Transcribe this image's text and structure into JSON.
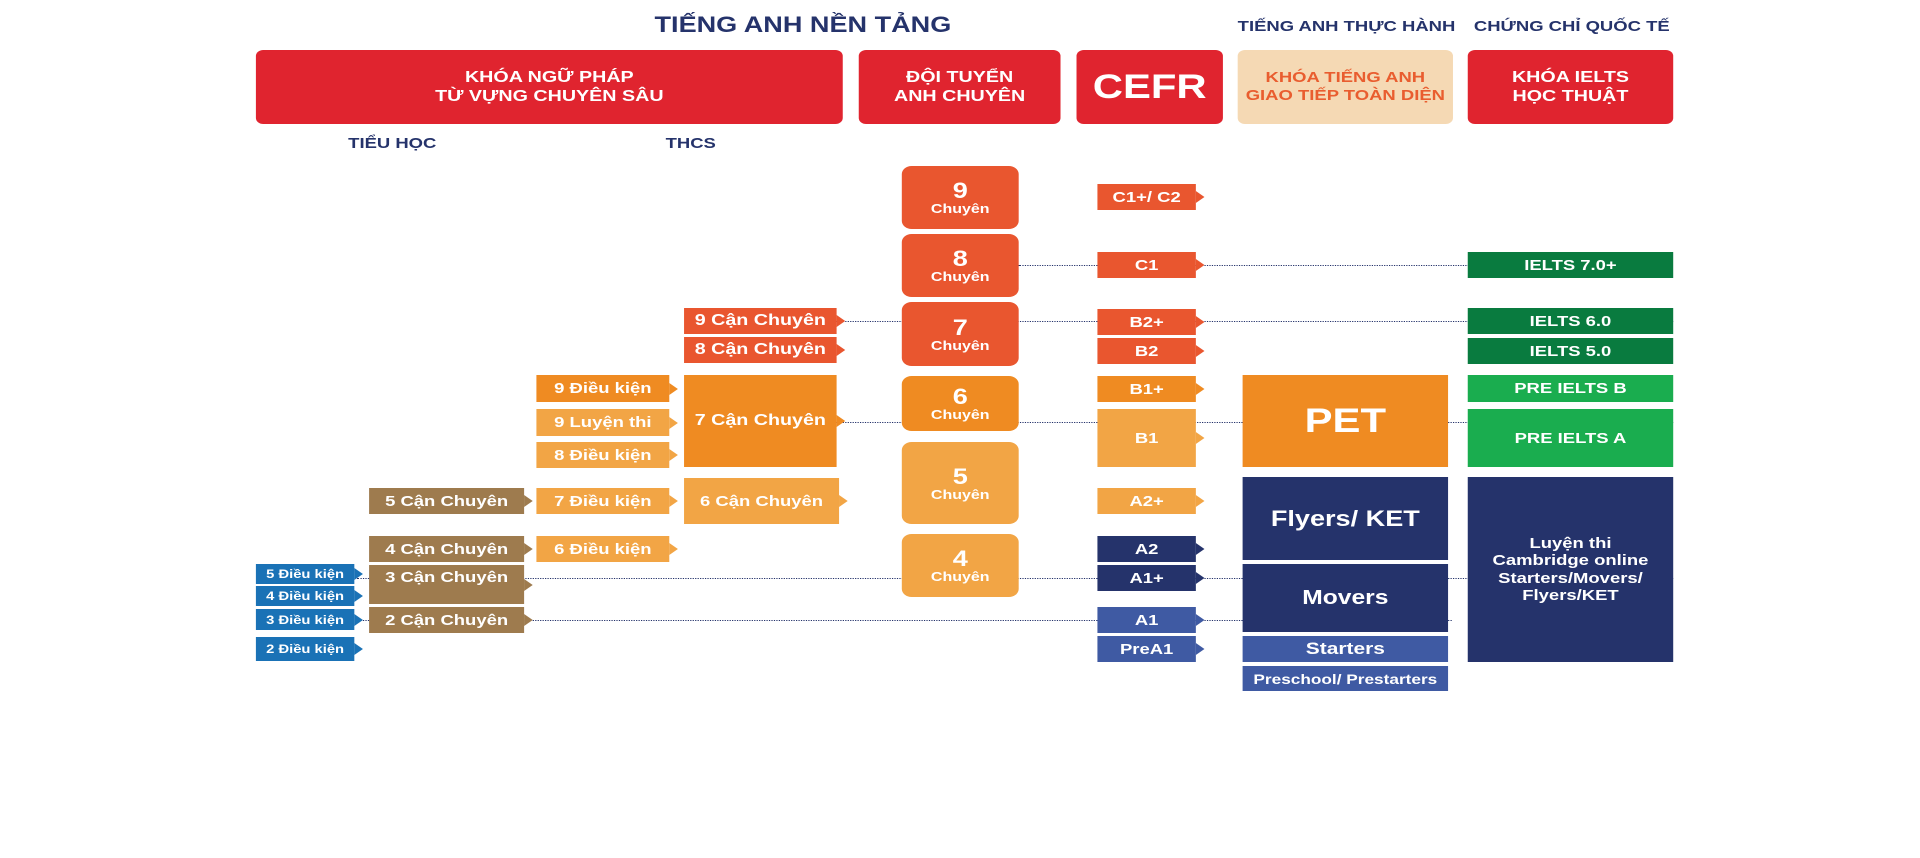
{
  "headers": {
    "foundation": "TIẾNG ANH NỀN TẢNG",
    "practical": "TIẾNG ANH THỰC HÀNH",
    "international": "CHỨNG CHỈ QUỐC TẾ"
  },
  "courses": {
    "grammar": [
      "KHÓA NGỮ PHÁP",
      "TỪ VỰNG CHUYÊN SÂU"
    ],
    "team": [
      "ĐỘI TUYỂN",
      "ANH CHUYÊN"
    ],
    "cefr": "CEFR",
    "communication": [
      "KHÓA TIẾNG ANH",
      "GIAO TIẾP TOÀN DIỆN"
    ],
    "ielts": [
      "KHÓA IELTS",
      "HỌC THUẬT"
    ]
  },
  "levels": {
    "primary": "TIỂU HỌC",
    "secondary": "THCS"
  },
  "chuyen_tiles": [
    {
      "num": "9",
      "label": "Chuyên"
    },
    {
      "num": "8",
      "label": "Chuyên"
    },
    {
      "num": "7",
      "label": "Chuyên"
    },
    {
      "num": "6",
      "label": "Chuyên"
    },
    {
      "num": "5",
      "label": "Chuyên"
    },
    {
      "num": "4",
      "label": "Chuyên"
    }
  ],
  "cefr_levels": [
    "C1+/ C2",
    "C1",
    "B2+",
    "B2",
    "B1+",
    "B1",
    "A2+",
    "A2",
    "A1+",
    "A1",
    "PreA1"
  ],
  "ielts_levels": [
    "IELTS 7.0+",
    "IELTS 6.0",
    "IELTS 5.0",
    "PRE IELTS B",
    "PRE IELTS A"
  ],
  "cambridge": [
    "Luyện thi",
    "Cambridge online",
    "Starters/Movers/",
    "Flyers/KET"
  ],
  "practical_levels": [
    "PET",
    "Flyers/ KET",
    "Movers",
    "Starters",
    "Preschool/ Prestarters"
  ],
  "secondary_can": [
    "9 Cận Chuyên",
    "8 Cận Chuyên",
    "7 Cận Chuyên",
    "6 Cận Chuyên"
  ],
  "secondary_other": [
    "9 Điều kiện",
    "9 Luyện thi",
    "8 Điều kiện",
    "7 Điều kiện",
    "6 Điều kiện"
  ],
  "primary_can": [
    "5 Cận Chuyên",
    "4 Cận Chuyên",
    "3 Cận Chuyên",
    "2 Cận Chuyên"
  ],
  "primary_dieukien": [
    "5 Điều kiện",
    "4 Điều kiện",
    "3 Điều kiện",
    "2 Điều kiện"
  ],
  "colors": {
    "red": "#e0242f",
    "peach": "#f5d9b4",
    "peach_text": "#e95d2f",
    "c_orange_dark": "#e9562f",
    "c_orange": "#ef8b22",
    "c_orange_light": "#f2a545",
    "navy": "#25336b",
    "blue_mid": "#3f5aa3",
    "brown": "#9e7b4e",
    "blue": "#1a72b6",
    "green_dark": "#097b3f",
    "green": "#1aad4f"
  }
}
